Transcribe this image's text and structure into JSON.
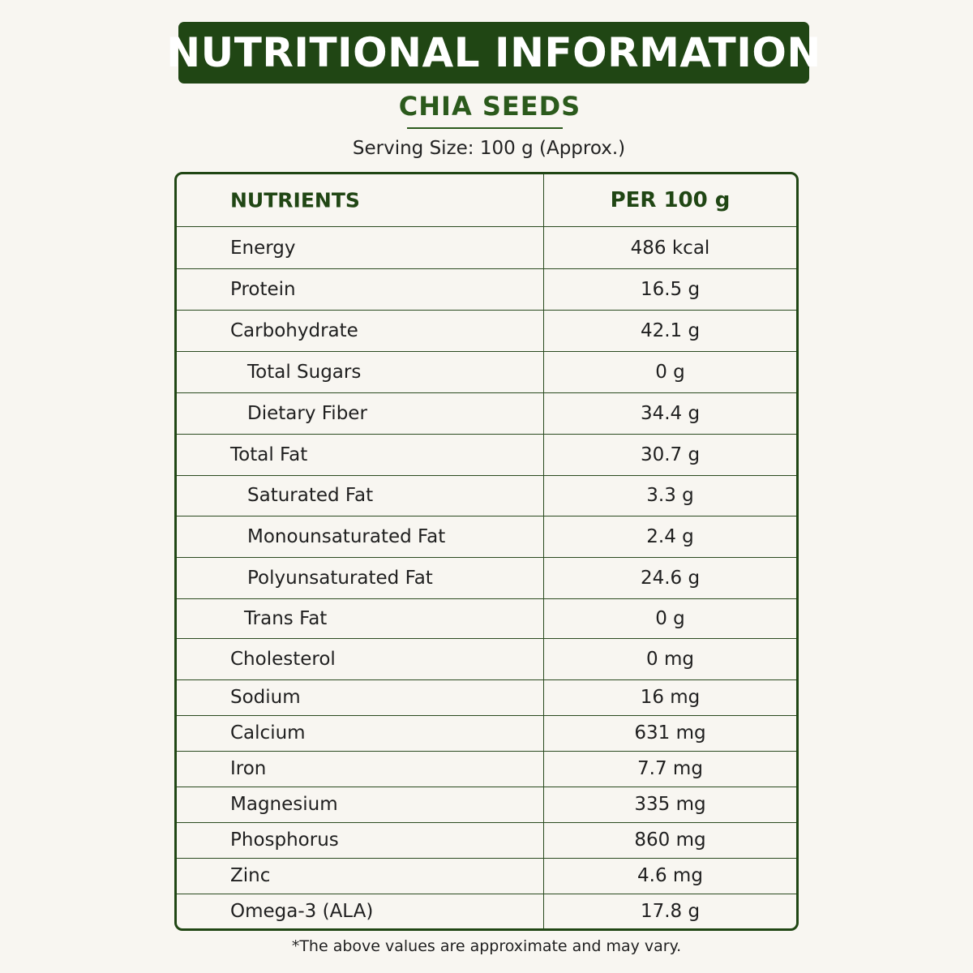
{
  "header": {
    "title": "NUTRITIONAL INFORMATION",
    "product": "CHIA SEEDS",
    "serving_size": "Serving Size: 100 g (Approx.)"
  },
  "table": {
    "columns": [
      "NUTRIENTS",
      "PER 100 g"
    ],
    "rows": [
      {
        "name": "Energy",
        "value": "486 kcal",
        "indent": false
      },
      {
        "name": "Protein",
        "value": "16.5 g",
        "indent": false
      },
      {
        "name": "Carbohydrate",
        "value": "42.1 g",
        "indent": false
      },
      {
        "name": "Total Sugars",
        "value": "0 g",
        "indent": true
      },
      {
        "name": "Dietary Fiber",
        "value": "34.4 g",
        "indent": true
      },
      {
        "name": "Total Fat",
        "value": "30.7 g",
        "indent": false
      },
      {
        "name": "Saturated Fat",
        "value": "3.3 g",
        "indent": true
      },
      {
        "name": "Monounsaturated Fat",
        "value": "2.4 g",
        "indent": true
      },
      {
        "name": "Polyunsaturated Fat",
        "value": "24.6 g",
        "indent": true
      },
      {
        "name": "Trans Fat",
        "value": "0 g",
        "indent": true
      },
      {
        "name": "Cholesterol",
        "value": "0 mg",
        "indent": false
      },
      {
        "name": "Sodium",
        "value": "16 mg",
        "indent": false
      },
      {
        "name": "Calcium",
        "value": "631 mg",
        "indent": false
      },
      {
        "name": "Iron",
        "value": "7.7 mg",
        "indent": false
      },
      {
        "name": "Magnesium",
        "value": "335 mg",
        "indent": false
      },
      {
        "name": "Phosphorus",
        "value": "860 mg",
        "indent": false
      },
      {
        "name": "Zinc",
        "value": "4.6 mg",
        "indent": false
      },
      {
        "name": "Omega-3 (ALA)",
        "value": "17.8 g",
        "indent": false
      }
    ]
  },
  "footnote": "*The above values are approximate and may vary.",
  "colors": {
    "background": "#f8f6f1",
    "primary_green": "#204614",
    "accent_green": "#2b5a1c",
    "text": "#1f1f1f"
  }
}
